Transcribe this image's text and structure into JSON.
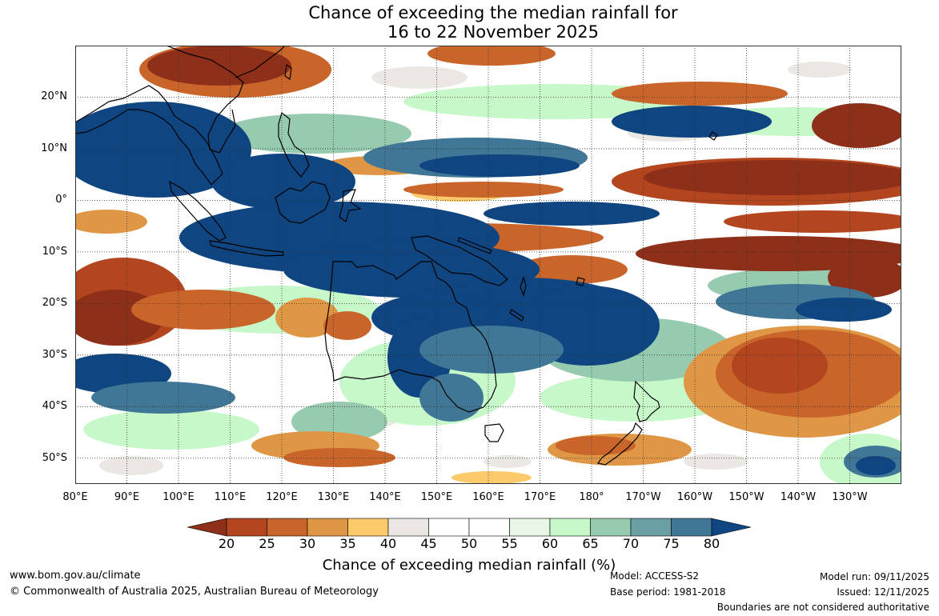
{
  "title": {
    "line1": "Chance of exceeding the median rainfall for",
    "line2": "16 to 22 November 2025"
  },
  "map": {
    "projection": "equirectangular",
    "lon_range": [
      80,
      240
    ],
    "lat_range": [
      -55,
      30
    ],
    "lat_ticks": [
      {
        "value": 20,
        "label": "20°N"
      },
      {
        "value": 10,
        "label": "10°N"
      },
      {
        "value": 0,
        "label": "0°"
      },
      {
        "value": -10,
        "label": "10°S"
      },
      {
        "value": -20,
        "label": "20°S"
      },
      {
        "value": -30,
        "label": "30°S"
      },
      {
        "value": -40,
        "label": "40°S"
      },
      {
        "value": -50,
        "label": "50°S"
      }
    ],
    "lon_ticks": [
      {
        "value": 80,
        "label": "80°E"
      },
      {
        "value": 90,
        "label": "90°E"
      },
      {
        "value": 100,
        "label": "100°E"
      },
      {
        "value": 110,
        "label": "110°E"
      },
      {
        "value": 120,
        "label": "120°E"
      },
      {
        "value": 130,
        "label": "130°E"
      },
      {
        "value": 140,
        "label": "140°E"
      },
      {
        "value": 150,
        "label": "150°E"
      },
      {
        "value": 160,
        "label": "160°E"
      },
      {
        "value": 170,
        "label": "170°E"
      },
      {
        "value": 180,
        "label": "180°"
      },
      {
        "value": 190,
        "label": "170°W"
      },
      {
        "value": 200,
        "label": "160°W"
      },
      {
        "value": 210,
        "label": "150°W"
      },
      {
        "value": 220,
        "label": "140°W"
      },
      {
        "value": 230,
        "label": "130°W"
      }
    ],
    "gridlines": "dotted"
  },
  "colorbar": {
    "title": "Chance of exceeding median rainfall (%)",
    "ticks": [
      "20",
      "25",
      "30",
      "35",
      "40",
      "45",
      "50",
      "55",
      "60",
      "65",
      "70",
      "75",
      "80"
    ],
    "colors": [
      "#8e3019",
      "#b4461f",
      "#c9652a",
      "#df9746",
      "#fcca6a",
      "#ebe8e3",
      "#ffffff",
      "#ffffff",
      "#e7f6e5",
      "#c6f8c9",
      "#97cbb0",
      "#6a9fa3",
      "#417796",
      "#0f4581"
    ],
    "under_color": "#8e3019",
    "over_color": "#0f4581"
  },
  "footer": {
    "website": "www.bom.gov.au/climate",
    "copyright": "© Commonwealth of Australia 2025, Australian Bureau of Meteorology",
    "model": "Model: ACCESS-S2",
    "base_period": "Base period: 1981-2018",
    "model_run": "Model run: 09/11/2025",
    "issued": "Issued: 12/11/2025",
    "disclaimer": "Boundaries are not considered authoritative"
  }
}
